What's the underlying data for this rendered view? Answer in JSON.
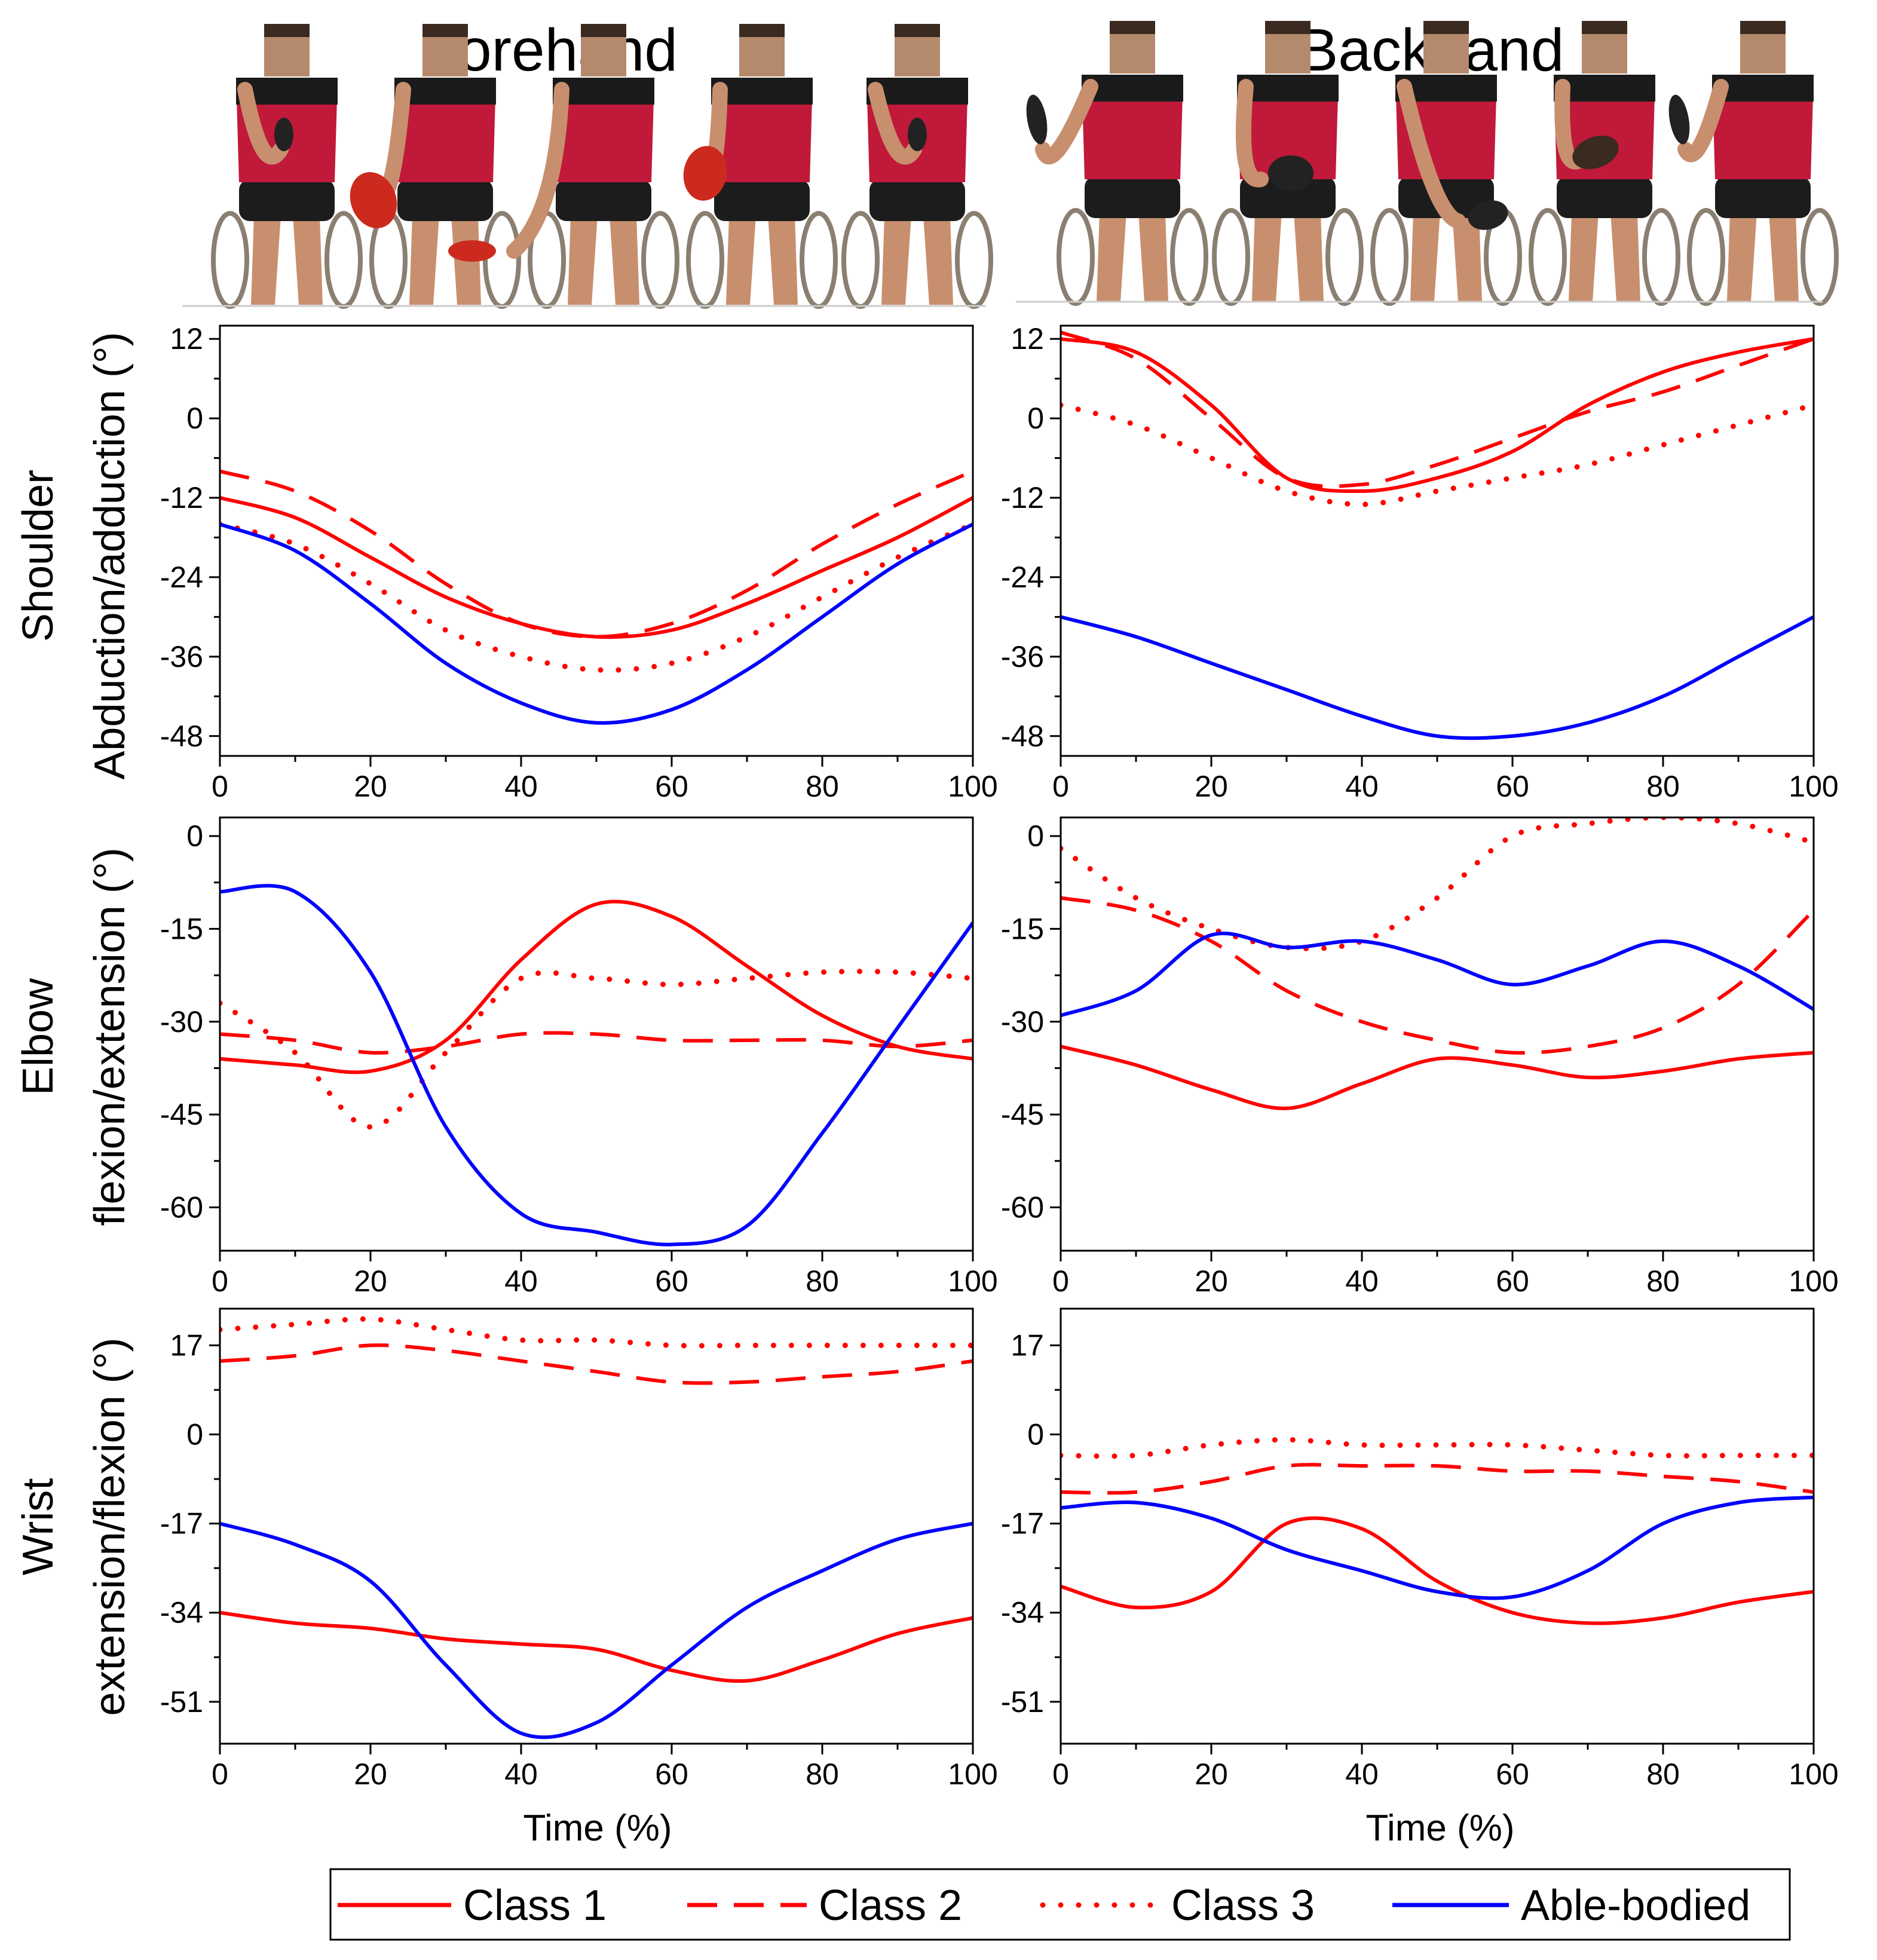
{
  "column_titles": [
    "Forehand",
    "Backhand"
  ],
  "row_titles": [
    {
      "line1": "Shoulder",
      "line2": "Abduction/adduction (°)"
    },
    {
      "line1": "Elbow",
      "line2": "flexion/extension (°)"
    },
    {
      "line1": "Wrist",
      "line2": "extension/flexion (°)"
    }
  ],
  "xlabel": "Time (%)",
  "series_styles": [
    {
      "name": "Class 1",
      "color": "#ff0000",
      "dash": "solid"
    },
    {
      "name": "Class 2",
      "color": "#ff0000",
      "dash": "dashed"
    },
    {
      "name": "Class 3",
      "color": "#ff0000",
      "dash": "dotted"
    },
    {
      "name": "Able-bodied",
      "color": "#0000ff",
      "dash": "solid"
    }
  ],
  "legend": {
    "items": [
      "Class 1",
      "Class 2",
      "Class 3",
      "Able-bodied"
    ]
  },
  "chart_data": [
    {
      "type": "line",
      "id": "shoulder-forehand",
      "row": 0,
      "col": 0,
      "xlim": [
        0,
        100
      ],
      "xticks": [
        0,
        20,
        40,
        60,
        80,
        100
      ],
      "ylim": [
        -51,
        14
      ],
      "yticks": [
        12,
        0,
        -12,
        -24,
        -36,
        -48
      ],
      "x": [
        0,
        10,
        20,
        30,
        40,
        50,
        60,
        70,
        80,
        90,
        100
      ],
      "series": [
        {
          "name": "Class 1",
          "values": [
            -12,
            -15,
            -21,
            -27,
            -31,
            -33,
            -32,
            -28,
            -23,
            -18,
            -12
          ]
        },
        {
          "name": "Class 2",
          "values": [
            -8,
            -11,
            -17,
            -25,
            -31,
            -33,
            -31,
            -26,
            -19,
            -13,
            -8
          ]
        },
        {
          "name": "Class 3",
          "values": [
            -16,
            -19,
            -25,
            -32,
            -36,
            -38,
            -37,
            -33,
            -27,
            -21,
            -16
          ]
        },
        {
          "name": "Able-bodied",
          "values": [
            -16,
            -20,
            -28,
            -37,
            -43,
            -46,
            -44,
            -38,
            -30,
            -22,
            -16
          ]
        }
      ]
    },
    {
      "type": "line",
      "id": "shoulder-backhand",
      "row": 0,
      "col": 1,
      "xlim": [
        0,
        100
      ],
      "xticks": [
        0,
        20,
        40,
        60,
        80,
        100
      ],
      "ylim": [
        -51,
        14
      ],
      "yticks": [
        12,
        0,
        -12,
        -24,
        -36,
        -48
      ],
      "x": [
        0,
        10,
        20,
        30,
        40,
        50,
        60,
        70,
        80,
        90,
        100
      ],
      "series": [
        {
          "name": "Class 1",
          "values": [
            12,
            10,
            2,
            -9,
            -11,
            -9,
            -5,
            2,
            7,
            10,
            12
          ]
        },
        {
          "name": "Class 2",
          "values": [
            13,
            9,
            0,
            -9,
            -10,
            -7,
            -3,
            1,
            4,
            8,
            12
          ]
        },
        {
          "name": "Class 3",
          "values": [
            2,
            -1,
            -6,
            -11,
            -13,
            -11,
            -9,
            -7,
            -4,
            -1,
            2
          ]
        },
        {
          "name": "Able-bodied",
          "values": [
            -30,
            -33,
            -37,
            -41,
            -45,
            -48,
            -48,
            -46,
            -42,
            -36,
            -30
          ]
        }
      ]
    },
    {
      "type": "line",
      "id": "elbow-forehand",
      "row": 1,
      "col": 0,
      "xlim": [
        0,
        100
      ],
      "xticks": [
        0,
        20,
        40,
        60,
        80,
        100
      ],
      "ylim": [
        -67,
        3
      ],
      "yticks": [
        0,
        -15,
        -30,
        -45,
        -60
      ],
      "x": [
        0,
        10,
        20,
        30,
        40,
        50,
        60,
        70,
        80,
        90,
        100
      ],
      "series": [
        {
          "name": "Class 1",
          "values": [
            -36,
            -37,
            -38,
            -33,
            -20,
            -11,
            -13,
            -21,
            -29,
            -34,
            -36
          ]
        },
        {
          "name": "Class 2",
          "values": [
            -32,
            -33,
            -35,
            -34,
            -32,
            -32,
            -33,
            -33,
            -33,
            -34,
            -33
          ]
        },
        {
          "name": "Class 3",
          "values": [
            -27,
            -35,
            -47,
            -35,
            -23,
            -23,
            -24,
            -23,
            -22,
            -22,
            -23
          ]
        },
        {
          "name": "Able-bodied",
          "values": [
            -9,
            -9,
            -22,
            -47,
            -61,
            -64,
            -66,
            -63,
            -48,
            -31,
            -14
          ]
        }
      ]
    },
    {
      "type": "line",
      "id": "elbow-backhand",
      "row": 1,
      "col": 1,
      "xlim": [
        0,
        100
      ],
      "xticks": [
        0,
        20,
        40,
        60,
        80,
        100
      ],
      "ylim": [
        -67,
        3
      ],
      "yticks": [
        0,
        -15,
        -30,
        -45,
        -60
      ],
      "x": [
        0,
        10,
        20,
        30,
        40,
        50,
        60,
        70,
        80,
        90,
        100
      ],
      "series": [
        {
          "name": "Class 1",
          "values": [
            -34,
            -37,
            -41,
            -44,
            -40,
            -36,
            -37,
            -39,
            -38,
            -36,
            -35
          ]
        },
        {
          "name": "Class 2",
          "values": [
            -10,
            -12,
            -17,
            -25,
            -30,
            -33,
            -35,
            -34,
            -31,
            -24,
            -12
          ]
        },
        {
          "name": "Class 3",
          "values": [
            -2,
            -10,
            -15,
            -18,
            -17,
            -10,
            0,
            2,
            3,
            2,
            -1
          ]
        },
        {
          "name": "Able-bodied",
          "values": [
            -29,
            -25,
            -16,
            -18,
            -17,
            -20,
            -24,
            -21,
            -17,
            -21,
            -28
          ]
        }
      ]
    },
    {
      "type": "line",
      "id": "wrist-forehand",
      "row": 2,
      "col": 0,
      "xlim": [
        0,
        100
      ],
      "xticks": [
        0,
        20,
        40,
        60,
        80,
        100
      ],
      "ylim": [
        -59,
        24
      ],
      "yticks": [
        17,
        0,
        -17,
        -34,
        -51
      ],
      "x": [
        0,
        10,
        20,
        30,
        40,
        50,
        60,
        70,
        80,
        90,
        100
      ],
      "series": [
        {
          "name": "Class 1",
          "values": [
            -34,
            -36,
            -37,
            -39,
            -40,
            -41,
            -45,
            -47,
            -43,
            -38,
            -35
          ]
        },
        {
          "name": "Class 2",
          "values": [
            14,
            15,
            17,
            16,
            14,
            12,
            10,
            10,
            11,
            12,
            14
          ]
        },
        {
          "name": "Class 3",
          "values": [
            20,
            21,
            22,
            20,
            18,
            18,
            17,
            17,
            17,
            17,
            17
          ]
        },
        {
          "name": "Able-bodied",
          "values": [
            -17,
            -21,
            -28,
            -44,
            -57,
            -55,
            -44,
            -33,
            -26,
            -20,
            -17
          ]
        }
      ]
    },
    {
      "type": "line",
      "id": "wrist-backhand",
      "row": 2,
      "col": 1,
      "xlim": [
        0,
        100
      ],
      "xticks": [
        0,
        20,
        40,
        60,
        80,
        100
      ],
      "ylim": [
        -59,
        24
      ],
      "yticks": [
        17,
        0,
        -17,
        -34,
        -51
      ],
      "x": [
        0,
        10,
        20,
        30,
        40,
        50,
        60,
        70,
        80,
        90,
        100
      ],
      "series": [
        {
          "name": "Class 1",
          "values": [
            -29,
            -33,
            -30,
            -17,
            -18,
            -28,
            -34,
            -36,
            -35,
            -32,
            -30
          ]
        },
        {
          "name": "Class 2",
          "values": [
            -11,
            -11,
            -9,
            -6,
            -6,
            -6,
            -7,
            -7,
            -8,
            -9,
            -11
          ]
        },
        {
          "name": "Class 3",
          "values": [
            -4,
            -4,
            -2,
            -1,
            -2,
            -2,
            -2,
            -3,
            -4,
            -4,
            -4
          ]
        },
        {
          "name": "Able-bodied",
          "values": [
            -14,
            -13,
            -16,
            -22,
            -26,
            -30,
            -31,
            -26,
            -17,
            -13,
            -12
          ]
        }
      ]
    }
  ]
}
